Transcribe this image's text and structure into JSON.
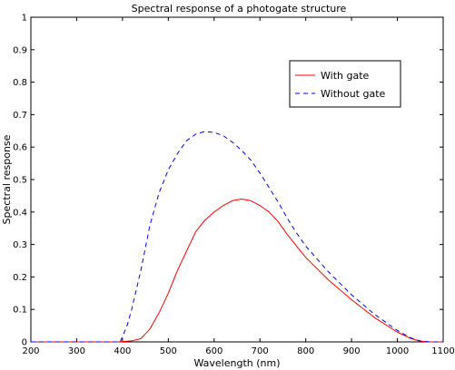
{
  "chart_data": {
    "type": "line",
    "title": "Spectral response of a photogate structure",
    "xlabel": "Wavelength (nm)",
    "ylabel": "Spectral response",
    "xlim": [
      200,
      1100
    ],
    "ylim": [
      0,
      1
    ],
    "xticks": [
      200,
      300,
      400,
      500,
      600,
      700,
      800,
      900,
      1000,
      1100
    ],
    "yticks": [
      0,
      0.1,
      0.2,
      0.3,
      0.4,
      0.5,
      0.6,
      0.7,
      0.8,
      0.9,
      1
    ],
    "yticklabels": [
      "0",
      "0.1",
      "0.2",
      "0.3",
      "0.4",
      "0.5",
      "0.6",
      "0.7",
      "0.8",
      "0.9",
      "1"
    ],
    "grid": false,
    "legend": "top-right",
    "series": [
      {
        "name": "With gate",
        "color": "#ff0000",
        "style": "solid",
        "x": [
          200,
          390,
          420,
          440,
          460,
          480,
          500,
          520,
          540,
          560,
          580,
          600,
          620,
          640,
          660,
          680,
          700,
          720,
          740,
          760,
          780,
          800,
          850,
          900,
          950,
          1000,
          1030,
          1050,
          1070,
          1100
        ],
        "y": [
          0,
          0,
          0.003,
          0.01,
          0.04,
          0.09,
          0.15,
          0.22,
          0.28,
          0.34,
          0.375,
          0.4,
          0.42,
          0.435,
          0.44,
          0.435,
          0.42,
          0.4,
          0.37,
          0.33,
          0.295,
          0.26,
          0.19,
          0.13,
          0.075,
          0.03,
          0.01,
          0.002,
          0,
          0
        ]
      },
      {
        "name": "Without gate",
        "color": "#0000ff",
        "style": "dashed",
        "x": [
          200,
          395,
          410,
          420,
          440,
          460,
          480,
          500,
          520,
          540,
          560,
          580,
          600,
          620,
          640,
          660,
          680,
          700,
          720,
          740,
          760,
          780,
          800,
          850,
          900,
          950,
          1000,
          1030,
          1050,
          1070,
          1100
        ],
        "y": [
          0,
          0,
          0.05,
          0.1,
          0.22,
          0.36,
          0.46,
          0.53,
          0.58,
          0.62,
          0.64,
          0.648,
          0.645,
          0.635,
          0.615,
          0.59,
          0.56,
          0.52,
          0.475,
          0.43,
          0.38,
          0.335,
          0.295,
          0.215,
          0.145,
          0.085,
          0.035,
          0.012,
          0.003,
          0,
          0
        ]
      }
    ]
  }
}
